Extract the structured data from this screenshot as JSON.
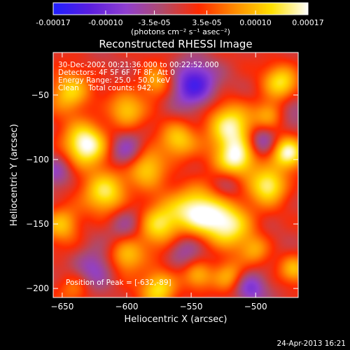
{
  "window": {
    "timestamp": "24-Apr-2013 16:21"
  },
  "colorbar": {
    "ticks": [
      "-0.00017",
      "-0.00010",
      "-3.5e-05",
      "3.5e-05",
      "0.00010",
      "0.00017"
    ],
    "tick_values": [
      -0.00017,
      -0.0001,
      -3.5e-05,
      3.5e-05,
      0.0001,
      0.00017
    ],
    "range": [
      -0.00017,
      0.00017
    ],
    "units": "(photons cm⁻² s⁻¹ asec⁻²)",
    "stops": [
      "#1f1fff",
      "#5a1ee0",
      "#8f3fcf",
      "#b04a6a",
      "#ff2a00",
      "#ff8c00",
      "#ffe000",
      "#ffffff"
    ]
  },
  "chart_data": {
    "type": "heatmap",
    "title": "Reconstructed RHESSI Image",
    "xlabel": "Heliocentric X (arcsec)",
    "ylabel": "Heliocentric Y (arcsec)",
    "xlim": [
      -657,
      -467
    ],
    "ylim": [
      -207,
      -17
    ],
    "xticks": [
      -650,
      -600,
      -550,
      -500
    ],
    "yticks": [
      -50,
      -100,
      -150,
      -200
    ],
    "annotations": [
      "30-Dec-2002 00:21:36.000 to 00:22:52.000",
      "Detectors: 4F 5F 6F 7F 8F, Att 0",
      "Energy Range: 25.0 - 50.0 keV",
      "Clean    Total counts: 942."
    ],
    "peak_label": "Position of Peak = [-632,-89]",
    "peak": [
      -632,
      -89
    ],
    "blobs": [
      {
        "x": -632,
        "y": -89,
        "v": 1.0,
        "s": 12
      },
      {
        "x": -644,
        "y": -48,
        "v": 0.7,
        "s": 11
      },
      {
        "x": -600,
        "y": -62,
        "v": 0.6,
        "s": 10
      },
      {
        "x": -577,
        "y": -40,
        "v": 0.55,
        "s": 9
      },
      {
        "x": -616,
        "y": -125,
        "v": 0.8,
        "s": 12
      },
      {
        "x": -650,
        "y": -150,
        "v": 0.6,
        "s": 10
      },
      {
        "x": -585,
        "y": -105,
        "v": 0.7,
        "s": 11
      },
      {
        "x": -560,
        "y": -85,
        "v": 0.6,
        "s": 10
      },
      {
        "x": -545,
        "y": -140,
        "v": 0.9,
        "s": 14
      },
      {
        "x": -520,
        "y": -150,
        "v": 0.8,
        "s": 13
      },
      {
        "x": -575,
        "y": -150,
        "v": 0.75,
        "s": 12
      },
      {
        "x": -520,
        "y": -75,
        "v": 0.85,
        "s": 13
      },
      {
        "x": -515,
        "y": -100,
        "v": 0.9,
        "s": 11
      },
      {
        "x": -490,
        "y": -120,
        "v": 0.85,
        "s": 10
      },
      {
        "x": -475,
        "y": -95,
        "v": 0.9,
        "s": 9
      },
      {
        "x": -480,
        "y": -40,
        "v": 0.7,
        "s": 10
      },
      {
        "x": -490,
        "y": -65,
        "v": 0.5,
        "s": 8
      },
      {
        "x": -600,
        "y": -175,
        "v": 0.65,
        "s": 10
      },
      {
        "x": -575,
        "y": -200,
        "v": 0.75,
        "s": 10
      },
      {
        "x": -520,
        "y": -190,
        "v": 0.55,
        "s": 9
      },
      {
        "x": -640,
        "y": -200,
        "v": 0.4,
        "s": 9
      },
      {
        "x": -545,
        "y": -190,
        "v": 0.5,
        "s": 8
      },
      {
        "x": -470,
        "y": -185,
        "v": 0.55,
        "s": 8
      },
      {
        "x": -500,
        "y": -170,
        "v": 0.4,
        "s": 8
      },
      {
        "x": -548,
        "y": -42,
        "v": -0.85,
        "s": 12
      },
      {
        "x": -600,
        "y": -95,
        "v": -0.55,
        "s": 10
      },
      {
        "x": -625,
        "y": -185,
        "v": -0.5,
        "s": 11
      },
      {
        "x": -505,
        "y": -200,
        "v": -0.55,
        "s": 9
      },
      {
        "x": -495,
        "y": -85,
        "v": -0.55,
        "s": 8
      },
      {
        "x": -555,
        "y": -170,
        "v": -0.4,
        "s": 10
      },
      {
        "x": -655,
        "y": -110,
        "v": -0.45,
        "s": 9
      },
      {
        "x": -600,
        "y": -150,
        "v": -0.4,
        "s": 10
      },
      {
        "x": -520,
        "y": -118,
        "v": -0.35,
        "s": 9
      },
      {
        "x": -470,
        "y": -60,
        "v": -0.3,
        "s": 8
      }
    ]
  }
}
